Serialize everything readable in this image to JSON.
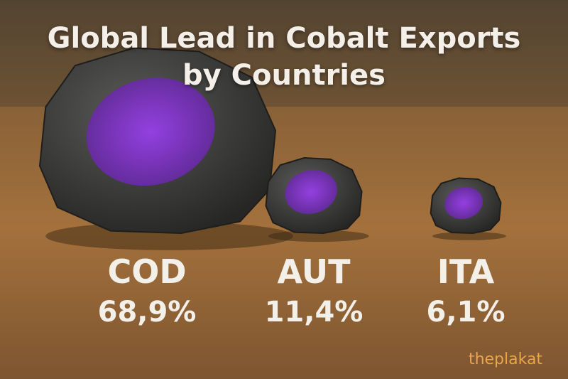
{
  "chart_data": {
    "type": "pictorial",
    "title": "Global Lead in Cobalt Exports by Countries",
    "categories": [
      "COD",
      "AUT",
      "ITA"
    ],
    "values": [
      68.9,
      11.4,
      6.1
    ],
    "value_labels": [
      "68,9%",
      "11,4%",
      "6,1%"
    ],
    "color": "#8a2be2",
    "watermark": "theplakat"
  }
}
